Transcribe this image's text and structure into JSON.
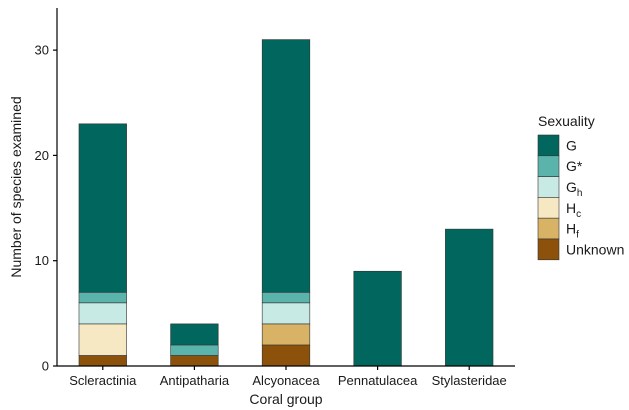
{
  "chart_data": {
    "type": "bar",
    "stacked": true,
    "categories": [
      "Scleractinia",
      "Antipatharia",
      "Alcyonacea",
      "Pennatulacea",
      "Stylasteridae"
    ],
    "xlabel": "Coral group",
    "ylabel": "Number of species examined",
    "ylim": [
      0,
      34
    ],
    "yticks": [
      0,
      10,
      20,
      30
    ],
    "grid": false,
    "legend": {
      "title": "Sexuality",
      "placement": "right"
    },
    "series": [
      {
        "name": "Unknown",
        "main": "Unknown",
        "sub": "",
        "color": "#8c510a",
        "values": [
          1,
          1,
          2,
          0,
          0
        ]
      },
      {
        "name": "Hf",
        "main": "H",
        "sub": "f",
        "color": "#d8b365",
        "values": [
          0,
          0,
          2,
          0,
          0
        ]
      },
      {
        "name": "Hc",
        "main": "H",
        "sub": "c",
        "color": "#f6e8c3",
        "values": [
          3,
          0,
          0,
          0,
          0
        ]
      },
      {
        "name": "Gh",
        "main": "G",
        "sub": "h",
        "color": "#c7eae5",
        "values": [
          2,
          0,
          2,
          0,
          0
        ]
      },
      {
        "name": "G*",
        "main": "G*",
        "sub": "",
        "color": "#5ab4ac",
        "values": [
          1,
          1,
          1,
          0,
          0
        ]
      },
      {
        "name": "G",
        "main": "G",
        "sub": "",
        "color": "#01665e",
        "values": [
          16,
          2,
          24,
          9,
          13
        ]
      }
    ]
  }
}
